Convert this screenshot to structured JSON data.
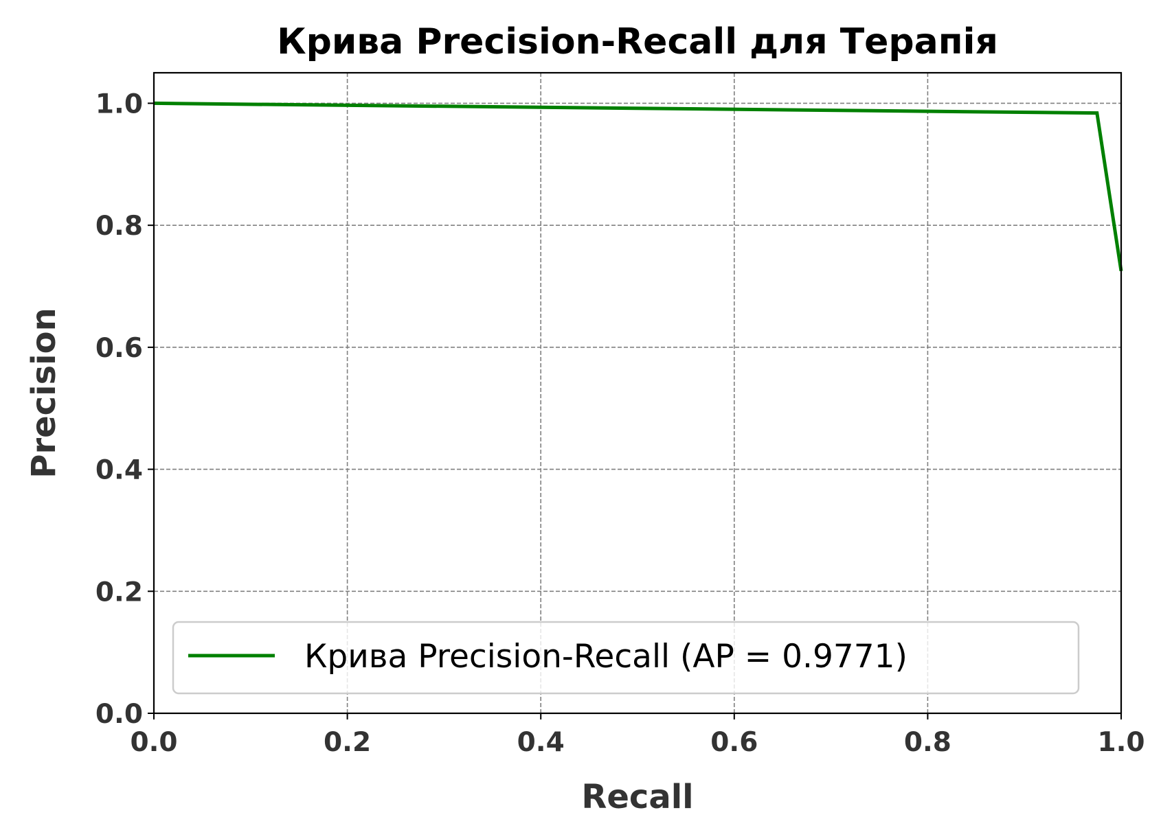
{
  "chart_data": {
    "type": "line",
    "title": "Крива Precision-Recall для Терапія",
    "xlabel": "Recall",
    "ylabel": "Precision",
    "xlim": [
      0.0,
      1.0
    ],
    "ylim": [
      0.0,
      1.05
    ],
    "xticks": [
      "0.0",
      "0.2",
      "0.4",
      "0.6",
      "0.8",
      "1.0"
    ],
    "yticks": [
      "0.0",
      "0.2",
      "0.4",
      "0.6",
      "0.8",
      "1.0"
    ],
    "grid": true,
    "legend_position": "lower-center",
    "series": [
      {
        "name": "Крива Precision-Recall (AP = 0.9771)",
        "color": "#008000",
        "x": [
          0.0,
          0.975,
          1.0
        ],
        "y": [
          1.0,
          0.984,
          0.725
        ]
      }
    ]
  }
}
